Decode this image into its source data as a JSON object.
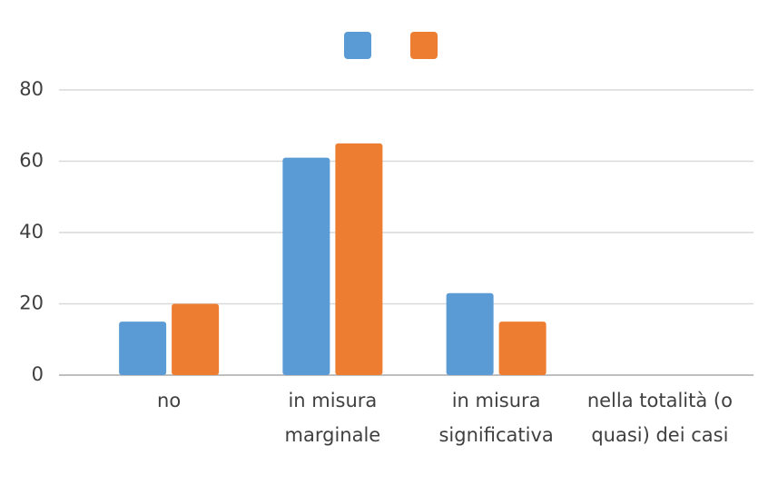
{
  "chart_data": {
    "type": "bar",
    "categories": [
      "no",
      "in misura marginale",
      "in misura significativa",
      "nella totalità (o quasi) dei casi"
    ],
    "series": [
      {
        "color": "#5b9bd5",
        "values": [
          15,
          61,
          23,
          0
        ]
      },
      {
        "color": "#ed7d31",
        "values": [
          20,
          65,
          15,
          0
        ]
      }
    ],
    "ylim": [
      0,
      80
    ],
    "yticks": [
      0,
      20,
      40,
      60,
      80
    ],
    "grid": true
  }
}
